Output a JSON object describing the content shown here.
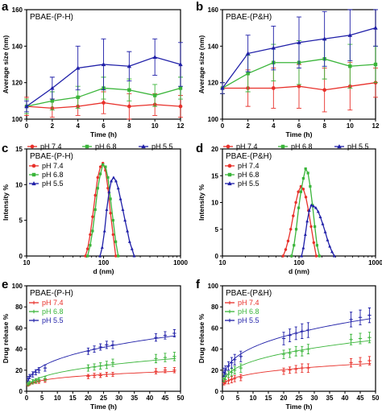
{
  "colors": {
    "red": "#e8302a",
    "green": "#3ab53a",
    "blue": "#1f1fa8"
  },
  "chart_data": [
    {
      "panel": "a",
      "type": "line",
      "title": "PBAE-(P-H)",
      "xlabel": "Time (h)",
      "ylabel": "Average size (nm)",
      "xlim": [
        0,
        12
      ],
      "ylim": [
        100,
        160
      ],
      "xticks": [
        0,
        2,
        4,
        6,
        8,
        10,
        12
      ],
      "yticks": [
        100,
        120,
        140,
        160
      ],
      "legend": "bottom",
      "series": [
        {
          "name": "pH 7.4",
          "color": "red",
          "marker": "circle",
          "x": [
            0,
            2,
            4,
            6,
            8,
            10,
            12
          ],
          "y": [
            107,
            106,
            107,
            109,
            107,
            108,
            107
          ],
          "err": [
            5,
            5,
            5,
            6,
            7,
            6,
            6
          ]
        },
        {
          "name": "pH 6.8",
          "color": "green",
          "marker": "square",
          "x": [
            0,
            2,
            4,
            6,
            8,
            10,
            12
          ],
          "y": [
            107,
            110,
            112,
            117,
            116,
            113,
            117
          ],
          "err": [
            4,
            5,
            6,
            6,
            6,
            6,
            6
          ]
        },
        {
          "name": "pH 5.5",
          "color": "blue",
          "marker": "triangle",
          "x": [
            0,
            2,
            4,
            6,
            8,
            10,
            12
          ],
          "y": [
            107,
            117,
            128,
            130,
            129,
            134,
            130
          ],
          "err": [
            3,
            6,
            12,
            14,
            8,
            10,
            12
          ]
        }
      ]
    },
    {
      "panel": "b",
      "type": "line",
      "title": "PBAE-(P&H)",
      "xlabel": "Time (h)",
      "ylabel": "Average size (nm)",
      "xlim": [
        0,
        12
      ],
      "ylim": [
        100,
        160
      ],
      "xticks": [
        0,
        2,
        4,
        6,
        8,
        10,
        12
      ],
      "yticks": [
        100,
        120,
        140,
        160
      ],
      "legend": "bottom",
      "series": [
        {
          "name": "pH 7.4",
          "color": "red",
          "marker": "circle",
          "x": [
            0,
            2,
            4,
            6,
            8,
            10,
            12
          ],
          "y": [
            117,
            117,
            117,
            118,
            116,
            118,
            120
          ],
          "err": [
            3,
            10,
            11,
            12,
            12,
            13,
            8
          ]
        },
        {
          "name": "pH 6.8",
          "color": "green",
          "marker": "square",
          "x": [
            0,
            2,
            4,
            6,
            8,
            10,
            12
          ],
          "y": [
            117,
            125,
            131,
            131,
            133,
            129,
            130
          ],
          "err": [
            3,
            10,
            10,
            12,
            11,
            12,
            10
          ]
        },
        {
          "name": "pH 5.5",
          "color": "blue",
          "marker": "triangle",
          "x": [
            0,
            2,
            4,
            6,
            8,
            10,
            12
          ],
          "y": [
            117,
            136,
            139,
            142,
            144,
            146,
            150
          ],
          "err": [
            3,
            10,
            12,
            14,
            15,
            14,
            10
          ]
        }
      ]
    },
    {
      "panel": "c",
      "type": "line",
      "title": "PBAE-(P-H)",
      "xlabel": "d (nm)",
      "ylabel": "Intensity %",
      "xscale": "log",
      "xlim": [
        10,
        1000
      ],
      "ylim": [
        0,
        15
      ],
      "xticks": [
        10,
        100,
        1000
      ],
      "yticks": [
        0,
        5,
        10,
        15
      ],
      "legend": "top-left",
      "series": [
        {
          "name": "pH 7.4",
          "color": "red",
          "marker": "circle",
          "x": [
            58,
            62,
            67,
            72,
            78,
            84,
            91,
            98,
            106,
            114,
            123,
            133,
            144
          ],
          "y": [
            0,
            1.0,
            3.0,
            5.5,
            8.5,
            11,
            12.5,
            13,
            12,
            9.5,
            6,
            3,
            0
          ]
        },
        {
          "name": "pH 6.8",
          "color": "green",
          "marker": "square",
          "x": [
            62,
            67,
            72,
            78,
            84,
            91,
            98,
            106,
            114,
            123,
            133,
            144,
            155
          ],
          "y": [
            0,
            1.5,
            3.5,
            6.5,
            9.5,
            11.5,
            12.8,
            12.5,
            11,
            8,
            5,
            2,
            0
          ]
        },
        {
          "name": "pH 5.5",
          "color": "blue",
          "marker": "triangle",
          "x": [
            90,
            96,
            103,
            110,
            118,
            126,
            135,
            145,
            155,
            166,
            178,
            190,
            204,
            218,
            234,
            250
          ],
          "y": [
            0,
            1.2,
            3.5,
            6.5,
            9,
            10.5,
            11,
            10.5,
            9.5,
            8,
            6.5,
            5,
            3.5,
            2,
            1,
            0
          ]
        }
      ]
    },
    {
      "panel": "d",
      "type": "line",
      "title": "PBAE-(P&H)",
      "xlabel": "d (nm)",
      "ylabel": "Intensity %",
      "xscale": "log",
      "xlim": [
        10,
        1000
      ],
      "ylim": [
        0,
        20
      ],
      "xticks": [
        10,
        100,
        1000
      ],
      "yticks": [
        0,
        5,
        10,
        15,
        20
      ],
      "legend": "top-left",
      "series": [
        {
          "name": "pH 7.4",
          "color": "red",
          "marker": "circle",
          "x": [
            62,
            67,
            72,
            78,
            84,
            91,
            98,
            106,
            114,
            123,
            133,
            144,
            156,
            168
          ],
          "y": [
            0,
            1.2,
            2.8,
            5,
            7.5,
            10,
            12,
            13,
            12.5,
            11,
            8.5,
            5.5,
            2.5,
            0
          ]
        },
        {
          "name": "pH 6.8",
          "color": "green",
          "marker": "square",
          "x": [
            80,
            86,
            92,
            99,
            106,
            114,
            122,
            131,
            140,
            150,
            161,
            172,
            185
          ],
          "y": [
            0,
            2,
            5,
            9,
            12,
            14.5,
            16.3,
            15.5,
            13,
            9.5,
            5.5,
            2,
            0
          ]
        },
        {
          "name": "pH 5.5",
          "color": "blue",
          "marker": "triangle",
          "x": [
            108,
            114,
            121,
            128,
            136,
            145,
            155,
            166,
            178,
            190,
            204,
            220,
            236,
            252,
            270,
            290
          ],
          "y": [
            0,
            1.5,
            4,
            6.5,
            8.5,
            9.5,
            9.3,
            9,
            8.3,
            7.3,
            6,
            4.5,
            3,
            1.8,
            0.8,
            0
          ]
        }
      ]
    },
    {
      "panel": "e",
      "type": "scatter",
      "title": "PBAE-(P-H)",
      "xlabel": "Time (h)",
      "ylabel": "Drug release %",
      "xlim": [
        0,
        50
      ],
      "ylim": [
        0,
        100
      ],
      "xticks": [
        0,
        5,
        10,
        15,
        20,
        25,
        30,
        35,
        40,
        45,
        50
      ],
      "yticks": [
        0,
        20,
        40,
        60,
        80,
        100
      ],
      "legend": "top-left",
      "series": [
        {
          "name": "pH 7.4",
          "color": "red",
          "marker": "plus",
          "x": [
            0.5,
            1,
            2,
            3,
            4,
            6,
            20,
            22,
            24,
            26,
            28,
            42,
            45,
            48
          ],
          "y": [
            6,
            7,
            8,
            9,
            9,
            10,
            14,
            15,
            15,
            16,
            16,
            19,
            20,
            20
          ],
          "err": [
            1,
            1,
            1,
            1.5,
            1.5,
            1.5,
            2,
            2,
            2,
            2,
            2,
            2.5,
            2.5,
            2.5
          ]
        },
        {
          "name": "pH 6.8",
          "color": "green",
          "marker": "plus",
          "x": [
            0.5,
            1,
            2,
            3,
            4,
            6,
            20,
            22,
            24,
            26,
            28,
            42,
            45,
            48
          ],
          "y": [
            7,
            8,
            9,
            10,
            11,
            12,
            22,
            23,
            24,
            25,
            27,
            31,
            32,
            33
          ],
          "err": [
            1.5,
            1.5,
            2,
            2,
            2,
            2,
            3,
            3,
            3,
            3.5,
            3.5,
            4,
            4,
            4
          ]
        },
        {
          "name": "pH 5.5",
          "color": "blue",
          "marker": "plus",
          "x": [
            0.5,
            1,
            2,
            3,
            4,
            6,
            20,
            22,
            24,
            26,
            28,
            42,
            45,
            48
          ],
          "y": [
            12,
            14,
            16,
            18,
            20,
            22,
            38,
            40,
            42,
            44,
            44,
            51,
            53,
            55
          ],
          "err": [
            2,
            2,
            2.5,
            2.5,
            2.5,
            3,
            3,
            3,
            3,
            3.5,
            3.5,
            3.5,
            3.5,
            3.5
          ]
        }
      ]
    },
    {
      "panel": "f",
      "type": "scatter",
      "title": "PBAE-(P&H)",
      "xlabel": "Time (h)",
      "ylabel": "Drug release %",
      "xlim": [
        0,
        50
      ],
      "ylim": [
        0,
        100
      ],
      "xticks": [
        0,
        5,
        10,
        15,
        20,
        25,
        30,
        35,
        40,
        45,
        50
      ],
      "yticks": [
        0,
        20,
        40,
        60,
        80,
        100
      ],
      "legend": "top-left",
      "series": [
        {
          "name": "pH 7.4",
          "color": "red",
          "marker": "plus",
          "x": [
            0.5,
            1,
            2,
            3,
            4,
            6,
            20,
            22,
            24,
            26,
            28,
            42,
            45,
            48
          ],
          "y": [
            8,
            9,
            10,
            11,
            12,
            13,
            19,
            20,
            21,
            22,
            22,
            27,
            28,
            29
          ],
          "err": [
            2,
            2,
            3,
            3,
            3,
            3,
            3,
            3,
            3.5,
            4,
            4,
            4,
            4,
            4
          ]
        },
        {
          "name": "pH 6.8",
          "color": "green",
          "marker": "plus",
          "x": [
            0.5,
            1,
            2,
            3,
            4,
            6,
            20,
            22,
            24,
            26,
            28,
            42,
            45,
            48
          ],
          "y": [
            12,
            14,
            16,
            18,
            20,
            22,
            35,
            36,
            38,
            38,
            40,
            49,
            50,
            51
          ],
          "err": [
            3,
            3,
            3,
            3.5,
            3.5,
            4,
            4,
            4,
            4.5,
            4.5,
            4.5,
            5,
            5,
            5
          ]
        },
        {
          "name": "pH 5.5",
          "color": "blue",
          "marker": "plus",
          "x": [
            0.5,
            1,
            2,
            3,
            4,
            6,
            20,
            22,
            24,
            26,
            28,
            42,
            45,
            48
          ],
          "y": [
            18,
            20,
            24,
            27,
            30,
            33,
            50,
            53,
            55,
            57,
            58,
            68,
            70,
            72
          ],
          "err": [
            4,
            4,
            4,
            5,
            5,
            5,
            6,
            6,
            6,
            7,
            7,
            7,
            7,
            7
          ]
        }
      ]
    }
  ]
}
